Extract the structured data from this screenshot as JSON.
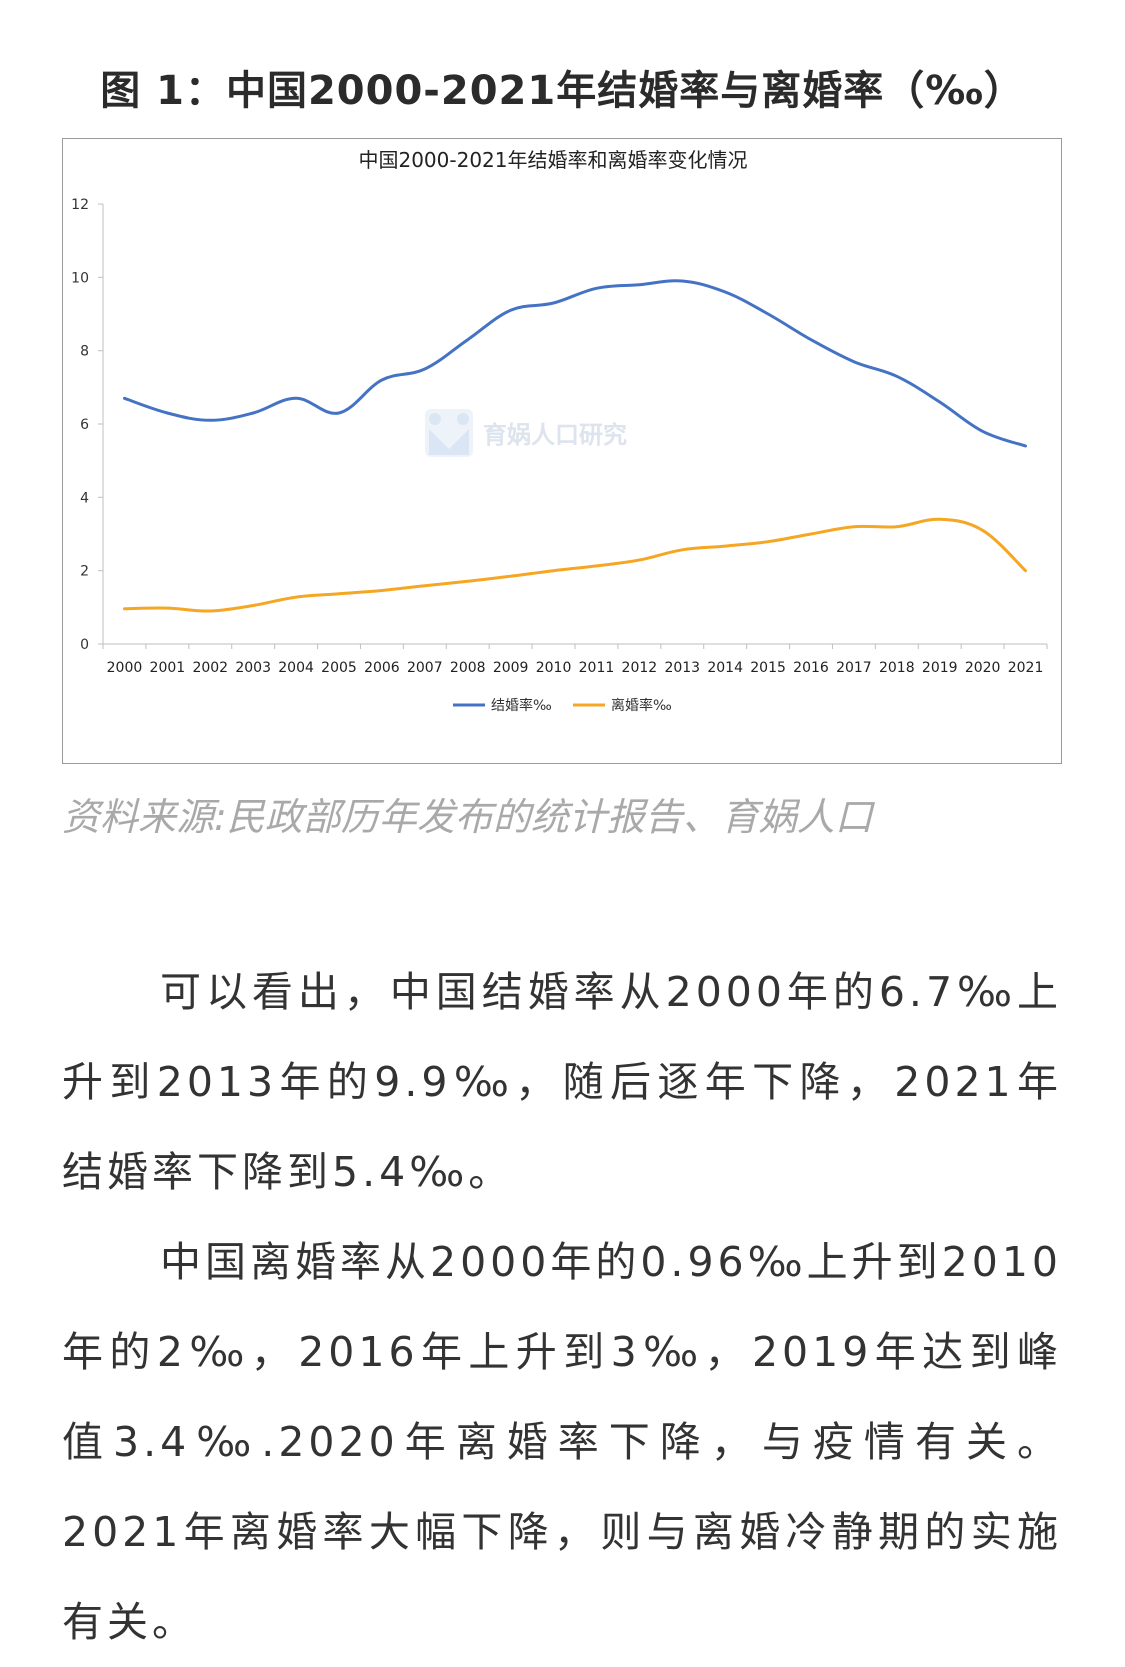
{
  "figure_title": "图 1：中国2000-2021年结婚率与离婚率（‰）",
  "source": "资料来源:民政部历年发布的统计报告、育娲人口",
  "paragraphs": [
    "可以看出，中国结婚率从2000年的6.7‰上升到2013年的9.9‰，随后逐年下降，2021年结婚率下降到5.4‰。",
    "中国离婚率从2000年的0.96‰上升到2010年的2‰，2016年上升到3‰，2019年达到峰值3.4‰.2020年离婚率下降，与疫情有关。2021年离婚率大幅下降，则与离婚冷静期的实施有关。"
  ],
  "watermark": {
    "text": "育娲人口研究",
    "icon": "yuwa-logo-icon"
  },
  "chart_data": {
    "type": "line",
    "title": "中国2000-2021年结婚率和离婚率变化情况",
    "xlabel": "",
    "ylabel": "",
    "categories": [
      "2000",
      "2001",
      "2002",
      "2003",
      "2004",
      "2005",
      "2006",
      "2007",
      "2008",
      "2009",
      "2010",
      "2011",
      "2012",
      "2013",
      "2014",
      "2015",
      "2016",
      "2017",
      "2018",
      "2019",
      "2020",
      "2021"
    ],
    "ylim": [
      0,
      12
    ],
    "yticks": [
      0,
      2,
      4,
      6,
      8,
      10,
      12
    ],
    "grid": false,
    "legend_position": "bottom",
    "series": [
      {
        "name": "结婚率‰",
        "color": "#4472C4",
        "values": [
          6.7,
          6.3,
          6.1,
          6.3,
          6.7,
          6.3,
          7.2,
          7.5,
          8.3,
          9.1,
          9.3,
          9.7,
          9.8,
          9.9,
          9.6,
          9.0,
          8.3,
          7.7,
          7.3,
          6.6,
          5.8,
          5.4
        ]
      },
      {
        "name": "离婚率‰",
        "color": "#F5A623",
        "values": [
          0.96,
          0.98,
          0.9,
          1.05,
          1.28,
          1.37,
          1.46,
          1.59,
          1.71,
          1.85,
          2.0,
          2.13,
          2.29,
          2.57,
          2.67,
          2.79,
          3.0,
          3.2,
          3.2,
          3.4,
          3.1,
          2.0
        ]
      }
    ]
  }
}
